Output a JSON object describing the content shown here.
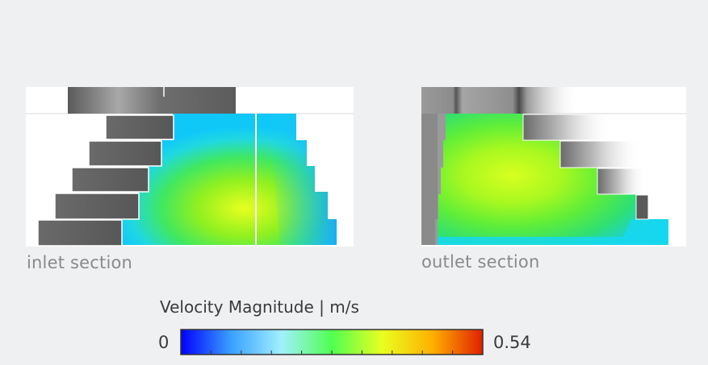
{
  "sections": {
    "inlet": {
      "caption": "inlet section"
    },
    "outlet": {
      "caption": "outlet section"
    }
  },
  "colorbar": {
    "title": "Velocity Magnitude | m/s",
    "min_label": "0",
    "max_label": "0.54",
    "min_value": 0,
    "max_value": 0.54,
    "colormap": "jet",
    "colors": [
      "#0000ff",
      "#3aa0ff",
      "#a0f0ff",
      "#50ff50",
      "#e8ff20",
      "#ffb000",
      "#e02000"
    ]
  }
}
